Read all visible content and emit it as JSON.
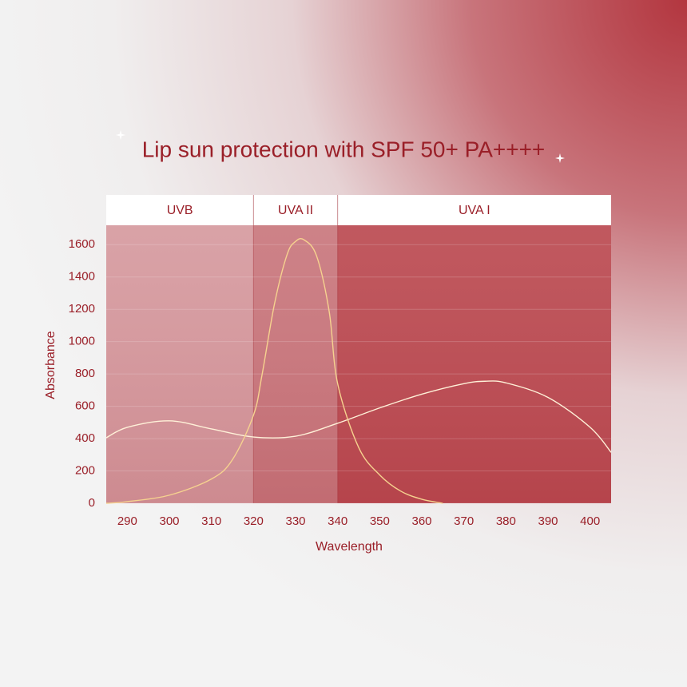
{
  "chart_data": {
    "type": "line",
    "title": "Lip sun protection with SPF 50+ PA++++",
    "x_label": "Wavelength",
    "y_label": "Absorbance",
    "xlim": [
      285,
      405
    ],
    "ylim": [
      0,
      1720
    ],
    "xticks": [
      290,
      300,
      310,
      320,
      330,
      340,
      350,
      360,
      370,
      380,
      390,
      400
    ],
    "yticks": [
      0,
      200,
      400,
      600,
      800,
      1000,
      1200,
      1400,
      1600
    ],
    "grid": true,
    "bands": [
      {
        "label": "UVB",
        "start": 285,
        "end": 320,
        "color": "#d69a9f"
      },
      {
        "label": "UVA II",
        "start": 320,
        "end": 340,
        "color": "#c9777d"
      },
      {
        "label": "UVA I",
        "start": 340,
        "end": 405,
        "color": "#bb4a51"
      }
    ],
    "series": [
      {
        "color": "#fff1d8",
        "x": [
          285,
          290,
          300,
          310,
          320,
          330,
          340,
          350,
          360,
          370,
          375,
          380,
          390,
          400,
          405
        ],
        "values": [
          405,
          470,
          510,
          460,
          410,
          415,
          495,
          590,
          675,
          740,
          755,
          745,
          655,
          470,
          315
        ]
      },
      {
        "color": "#f6d28f",
        "x": [
          285,
          290,
          300,
          310,
          315,
          320,
          322,
          325,
          328,
          330,
          332,
          335,
          338,
          340,
          345,
          350,
          355,
          360,
          365
        ],
        "values": [
          0,
          10,
          50,
          150,
          270,
          545,
          790,
          1235,
          1540,
          1620,
          1630,
          1530,
          1185,
          740,
          345,
          175,
          75,
          25,
          0
        ]
      }
    ]
  }
}
